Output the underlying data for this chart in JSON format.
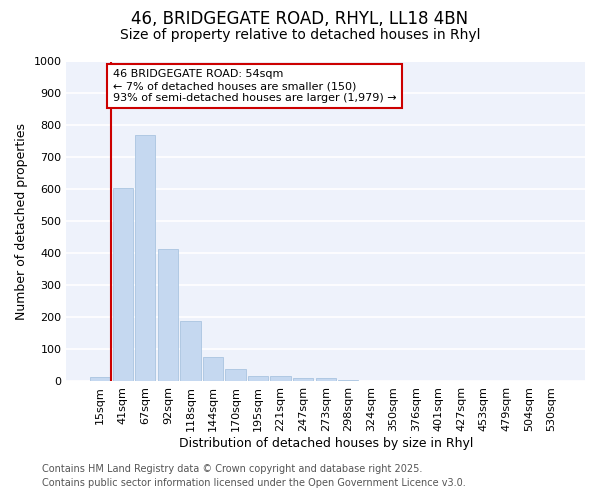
{
  "title_line1": "46, BRIDGEGATE ROAD, RHYL, LL18 4BN",
  "title_line2": "Size of property relative to detached houses in Rhyl",
  "xlabel": "Distribution of detached houses by size in Rhyl",
  "ylabel": "Number of detached properties",
  "categories": [
    "15sqm",
    "41sqm",
    "67sqm",
    "92sqm",
    "118sqm",
    "144sqm",
    "170sqm",
    "195sqm",
    "221sqm",
    "247sqm",
    "273sqm",
    "298sqm",
    "324sqm",
    "350sqm",
    "376sqm",
    "401sqm",
    "427sqm",
    "453sqm",
    "479sqm",
    "504sqm",
    "530sqm"
  ],
  "values": [
    15,
    605,
    770,
    415,
    190,
    75,
    40,
    17,
    17,
    10,
    10,
    5,
    0,
    0,
    0,
    0,
    0,
    0,
    0,
    0,
    0
  ],
  "bar_color": "#c5d8f0",
  "bar_edge_color": "#aac4e0",
  "vline_x": 1,
  "vline_color": "#cc0000",
  "annotation_text": "46 BRIDGEGATE ROAD: 54sqm\n← 7% of detached houses are smaller (150)\n93% of semi-detached houses are larger (1,979) →",
  "annotation_box_edgecolor": "#cc0000",
  "annotation_facecolor": "#ffffff",
  "ylim": [
    0,
    1000
  ],
  "yticks": [
    0,
    100,
    200,
    300,
    400,
    500,
    600,
    700,
    800,
    900,
    1000
  ],
  "plot_bg_color": "#eef2fb",
  "grid_color": "#ffffff",
  "footer_line1": "Contains HM Land Registry data © Crown copyright and database right 2025.",
  "footer_line2": "Contains public sector information licensed under the Open Government Licence v3.0.",
  "title1_fontsize": 12,
  "title2_fontsize": 10,
  "axis_label_fontsize": 9,
  "tick_fontsize": 8,
  "annotation_fontsize": 8,
  "footer_fontsize": 7
}
